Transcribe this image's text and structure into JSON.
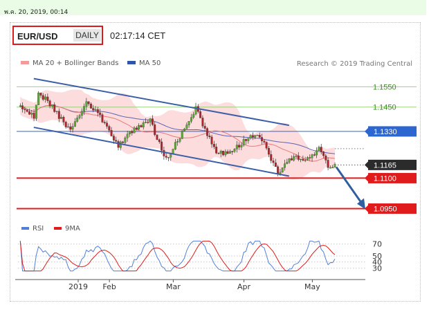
{
  "header": {
    "date_stamp": "พ.ค. 20, 2019, 00:14",
    "pair": "EUR/USD",
    "period": "DAILY",
    "time": "02:17:14 CET"
  },
  "chart_data": [
    {
      "type": "candlestick",
      "title": "EUR/USD DAILY",
      "legend": [
        {
          "name": "MA 20 + Bollinger Bands",
          "color": "#f39a9a"
        },
        {
          "name": "MA 50",
          "color": "#2d55a8"
        }
      ],
      "credit": "Research © 2019 Trading Central",
      "x_tick_labels": [
        "2019",
        "Feb",
        "Mar",
        "Apr",
        "May"
      ],
      "ylim": [
        1.088,
        1.165
      ],
      "levels": [
        {
          "value": 1.155,
          "label": "1.1550",
          "kind": "resistance",
          "color": "#9bd27c"
        },
        {
          "value": 1.145,
          "label": "1.1450",
          "kind": "resistance",
          "color": "#9bd27c"
        },
        {
          "value": 1.133,
          "label": "1.1330",
          "kind": "pivot",
          "color": "#2e66d0"
        },
        {
          "value": 1.1165,
          "label": "1.1165",
          "kind": "last",
          "color": "#2b2b2b"
        },
        {
          "value": 1.11,
          "label": "1.1100",
          "kind": "support",
          "color": "#e01b1b"
        },
        {
          "value": 1.095,
          "label": "1.0950",
          "kind": "support",
          "color": "#e01b1b"
        }
      ],
      "channel": {
        "upper": [
          [
            "Jan 2",
            1.159
          ],
          [
            "May 9",
            1.136
          ]
        ],
        "lower": [
          [
            "Jan 2",
            1.135
          ],
          [
            "May 9",
            1.111
          ]
        ]
      },
      "projection": {
        "from": 1.1165,
        "to": 1.095,
        "direction": "down"
      },
      "anchors": [
        [
          "Jan 1",
          1.1465
        ],
        [
          "Jan 8",
          1.1405
        ],
        [
          "Jan 10",
          1.152
        ],
        [
          "Jan 14",
          1.148
        ],
        [
          "Jan 24",
          1.133
        ],
        [
          "Jan 31",
          1.148
        ],
        [
          "Feb 6",
          1.14
        ],
        [
          "Feb 14",
          1.126
        ],
        [
          "Feb 20",
          1.133
        ],
        [
          "Feb 28",
          1.138
        ],
        [
          "Mar 7",
          1.119
        ],
        [
          "Mar 20",
          1.144
        ],
        [
          "Mar 29",
          1.122
        ],
        [
          "Apr 5",
          1.123
        ],
        [
          "Apr 12",
          1.13
        ],
        [
          "Apr 17",
          1.131
        ],
        [
          "Apr 25",
          1.113
        ],
        [
          "May 1",
          1.12
        ],
        [
          "May 7",
          1.119
        ],
        [
          "May 13",
          1.124
        ],
        [
          "May 17",
          1.116
        ]
      ]
    },
    {
      "type": "line",
      "title": "RSI",
      "series": [
        {
          "name": "RSI",
          "color": "#4f7fde"
        },
        {
          "name": "9MA",
          "color": "#e01b1b"
        }
      ],
      "ylim": [
        20,
        80
      ],
      "y_ticks": [
        70,
        50,
        40,
        30
      ],
      "last_value": 40
    }
  ]
}
